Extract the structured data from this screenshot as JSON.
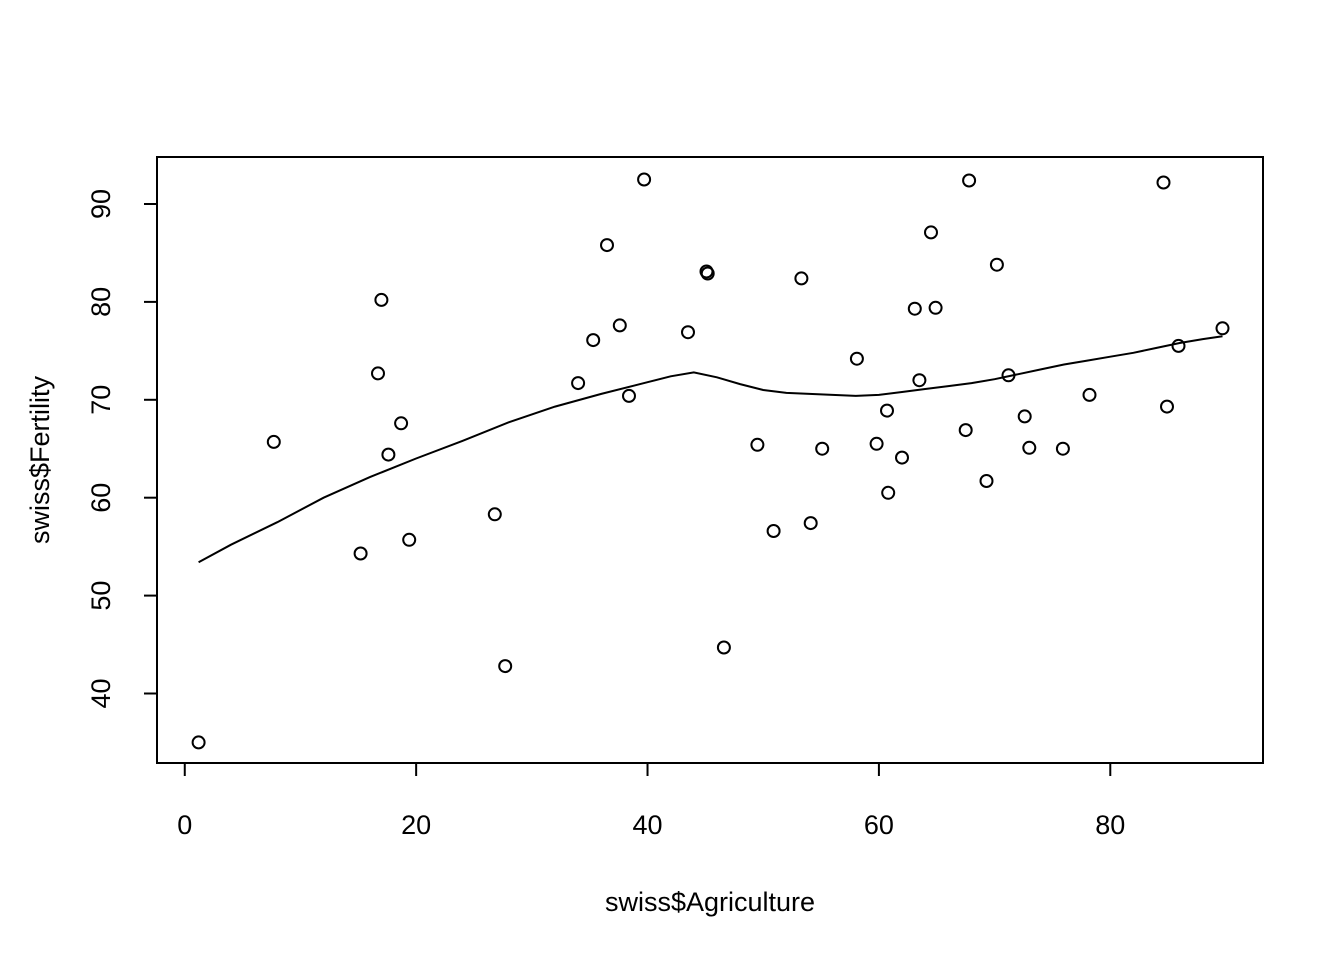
{
  "chart_data": {
    "type": "scatter",
    "title": "",
    "xlabel": "swiss$Agriculture",
    "ylabel": "swiss$Fertility",
    "xlim": [
      -2.4,
      93.2
    ],
    "ylim": [
      32.9,
      94.8
    ],
    "x_ticks": [
      0,
      20,
      40,
      60,
      80
    ],
    "x_tick_labels": [
      "0",
      "20",
      "40",
      "60",
      "80"
    ],
    "y_ticks": [
      40,
      50,
      60,
      70,
      80,
      90
    ],
    "y_tick_labels": [
      "40",
      "50",
      "60",
      "70",
      "80",
      "90"
    ],
    "grid": false,
    "legend": "none",
    "points": [
      {
        "x": 17.0,
        "y": 80.2
      },
      {
        "x": 45.1,
        "y": 83.1
      },
      {
        "x": 39.7,
        "y": 92.5
      },
      {
        "x": 36.5,
        "y": 85.8
      },
      {
        "x": 43.5,
        "y": 76.9
      },
      {
        "x": 35.3,
        "y": 76.1
      },
      {
        "x": 70.2,
        "y": 83.8
      },
      {
        "x": 67.8,
        "y": 92.4
      },
      {
        "x": 53.3,
        "y": 82.4
      },
      {
        "x": 45.2,
        "y": 82.9
      },
      {
        "x": 64.5,
        "y": 87.1
      },
      {
        "x": 62.0,
        "y": 64.1
      },
      {
        "x": 67.5,
        "y": 66.9
      },
      {
        "x": 60.7,
        "y": 68.9
      },
      {
        "x": 69.3,
        "y": 61.7
      },
      {
        "x": 72.6,
        "y": 68.3
      },
      {
        "x": 34.0,
        "y": 71.7
      },
      {
        "x": 19.4,
        "y": 55.7
      },
      {
        "x": 15.2,
        "y": 54.3
      },
      {
        "x": 73.0,
        "y": 65.1
      },
      {
        "x": 59.8,
        "y": 65.5
      },
      {
        "x": 55.1,
        "y": 65.0
      },
      {
        "x": 50.9,
        "y": 56.6
      },
      {
        "x": 54.1,
        "y": 57.4
      },
      {
        "x": 71.2,
        "y": 72.5
      },
      {
        "x": 58.1,
        "y": 74.2
      },
      {
        "x": 63.5,
        "y": 72.0
      },
      {
        "x": 60.8,
        "y": 60.5
      },
      {
        "x": 26.8,
        "y": 58.3
      },
      {
        "x": 49.5,
        "y": 65.4
      },
      {
        "x": 85.9,
        "y": 75.5
      },
      {
        "x": 84.9,
        "y": 69.3
      },
      {
        "x": 89.7,
        "y": 77.3
      },
      {
        "x": 78.2,
        "y": 70.5
      },
      {
        "x": 64.9,
        "y": 79.4
      },
      {
        "x": 75.9,
        "y": 65.0
      },
      {
        "x": 84.6,
        "y": 92.2
      },
      {
        "x": 63.1,
        "y": 79.3
      },
      {
        "x": 38.4,
        "y": 70.4
      },
      {
        "x": 7.7,
        "y": 65.7
      },
      {
        "x": 16.7,
        "y": 72.7
      },
      {
        "x": 17.6,
        "y": 64.4
      },
      {
        "x": 37.6,
        "y": 77.6
      },
      {
        "x": 18.7,
        "y": 67.6
      },
      {
        "x": 1.2,
        "y": 35.0
      },
      {
        "x": 46.6,
        "y": 44.7
      },
      {
        "x": 27.7,
        "y": 42.8
      }
    ],
    "smooth_line": {
      "x": [
        1.2,
        4,
        8,
        12,
        16,
        20,
        24,
        28,
        32,
        36,
        40,
        42,
        44,
        46,
        48,
        50,
        52,
        54,
        56,
        58,
        60,
        62,
        64,
        66,
        68,
        70,
        72,
        74,
        76,
        78,
        80,
        82,
        84,
        86,
        88,
        89.7
      ],
      "y": [
        53.4,
        55.2,
        57.5,
        60.0,
        62.1,
        64.0,
        65.8,
        67.7,
        69.3,
        70.6,
        71.8,
        72.4,
        72.8,
        72.3,
        71.6,
        71.0,
        70.7,
        70.6,
        70.5,
        70.4,
        70.5,
        70.8,
        71.1,
        71.4,
        71.7,
        72.1,
        72.6,
        73.1,
        73.6,
        74.0,
        74.4,
        74.8,
        75.3,
        75.8,
        76.2,
        76.5
      ]
    }
  }
}
